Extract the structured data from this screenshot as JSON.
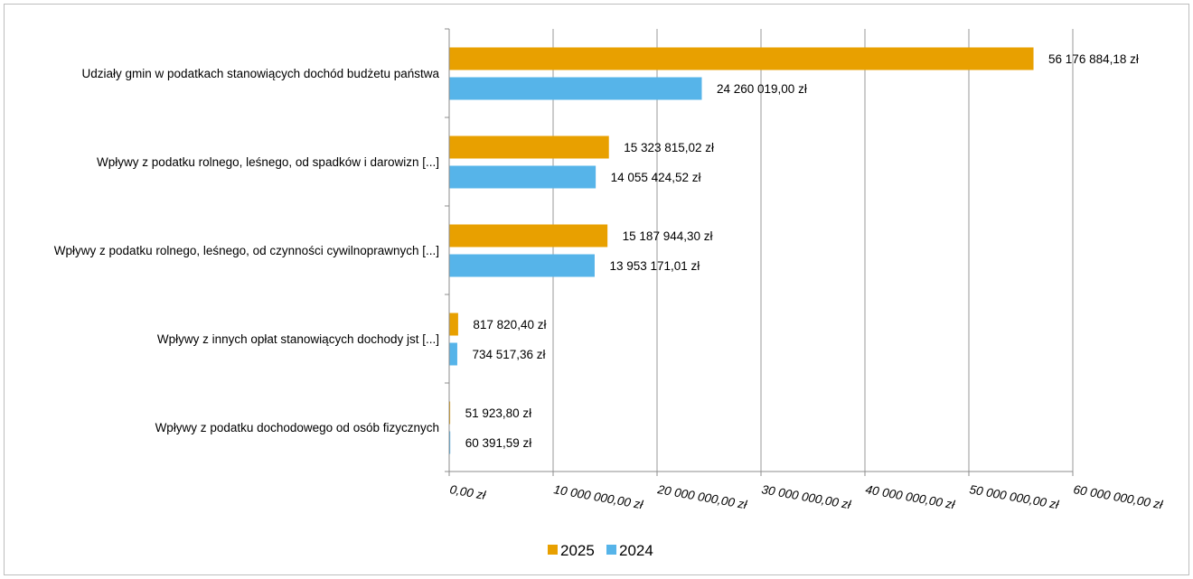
{
  "chart_data": {
    "type": "bar",
    "orientation": "horizontal",
    "categories": [
      "Udziały gmin w podatkach stanowiących dochód budżetu państwa",
      "Wpływy z podatku rolnego, leśnego, od spadków i darowizn [...]",
      "Wpływy z podatku rolnego, leśnego, od czynności cywilnoprawnych [...]",
      "Wpływy z innych opłat stanowiących dochody jst [...]",
      "Wpływy z podatku dochodowego od osób fizycznych"
    ],
    "series": [
      {
        "name": "2025",
        "color": "#E8A000",
        "values": [
          56176884.18,
          15323815.02,
          15187944.3,
          817820.4,
          51923.8
        ],
        "labels": [
          "56 176 884,18 zł",
          "15 323 815,02 zł",
          "15 187 944,30 zł",
          "817 820,40 zł",
          "51 923,80 zł"
        ]
      },
      {
        "name": "2024",
        "color": "#56B4E9",
        "values": [
          24260019.0,
          14055424.52,
          13953171.01,
          734517.36,
          60391.59
        ],
        "labels": [
          "24 260 019,00 zł",
          "14 055 424,52 zł",
          "13 953 171,01 zł",
          "734 517,36 zł",
          "60 391,59 zł"
        ]
      }
    ],
    "xlim": [
      0,
      60000000
    ],
    "ticks": [
      0,
      10000000,
      20000000,
      30000000,
      40000000,
      50000000,
      60000000
    ],
    "tick_labels": [
      "0,00 zł",
      "10 000 000,00 zł",
      "20 000 000,00 zł",
      "30 000 000,00 zł",
      "40 000 000,00 zł",
      "50 000 000,00 zł",
      "60 000 000,00 zł"
    ],
    "grid": "vertical",
    "legend_position": "bottom",
    "title": "",
    "xlabel": "",
    "ylabel": ""
  }
}
